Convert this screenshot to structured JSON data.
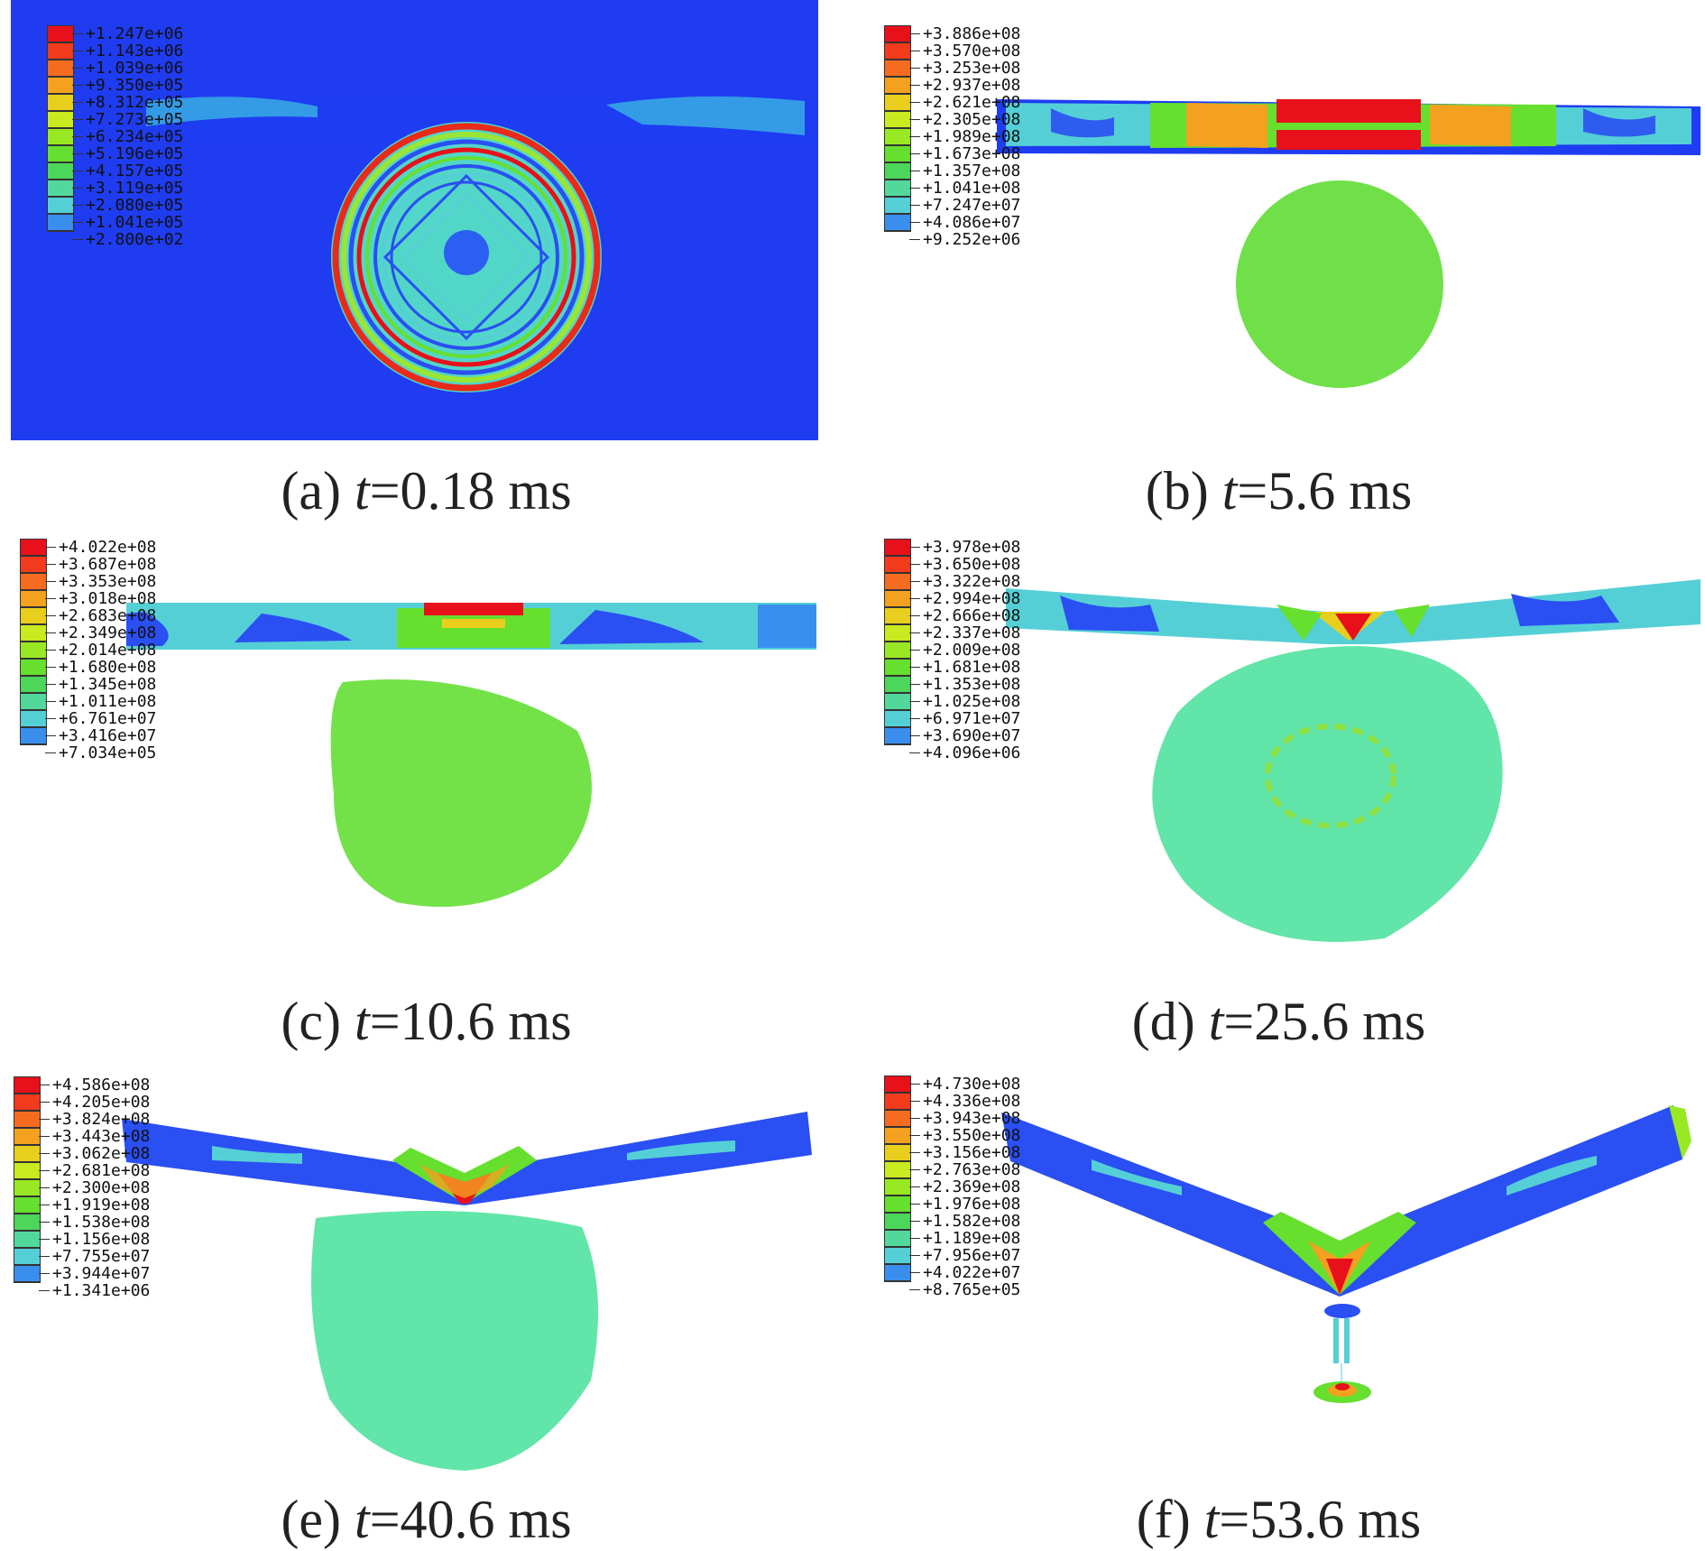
{
  "colormap": [
    "#e8101a",
    "#f23a1c",
    "#f56c20",
    "#f3a11f",
    "#e8cf1e",
    "#c9ea1f",
    "#98e923",
    "#66df2e",
    "#4cd65a",
    "#52d89b",
    "#55cfd6",
    "#3a8fee",
    "#2a4ff2",
    "#1f2ff2"
  ],
  "panels": [
    {
      "id": "a",
      "caption_label": "(a) ",
      "caption_var": "t",
      "caption_value": "=0.18 ms",
      "legend_labels": [
        "+1.247e+06",
        "+1.143e+06",
        "+1.039e+06",
        "+9.350e+05",
        "+8.312e+05",
        "+7.273e+05",
        "+6.234e+05",
        "+5.196e+05",
        "+4.157e+05",
        "+3.119e+05",
        "+2.080e+05",
        "+1.041e+05",
        "+2.800e+02"
      ]
    },
    {
      "id": "b",
      "caption_label": "(b) ",
      "caption_var": "t",
      "caption_value": "=5.6 ms",
      "legend_labels": [
        "+3.886e+08",
        "+3.570e+08",
        "+3.253e+08",
        "+2.937e+08",
        "+2.621e+08",
        "+2.305e+08",
        "+1.989e+08",
        "+1.673e+08",
        "+1.357e+08",
        "+1.041e+08",
        "+7.247e+07",
        "+4.086e+07",
        "+9.252e+06"
      ]
    },
    {
      "id": "c",
      "caption_label": "(c) ",
      "caption_var": "t",
      "caption_value": "=10.6 ms",
      "legend_labels": [
        "+4.022e+08",
        "+3.687e+08",
        "+3.353e+08",
        "+3.018e+08",
        "+2.683e+08",
        "+2.349e+08",
        "+2.014e+08",
        "+1.680e+08",
        "+1.345e+08",
        "+1.011e+08",
        "+6.761e+07",
        "+3.416e+07",
        "+7.034e+05"
      ]
    },
    {
      "id": "d",
      "caption_label": "(d) ",
      "caption_var": "t",
      "caption_value": "=25.6 ms",
      "legend_labels": [
        "+3.978e+08",
        "+3.650e+08",
        "+3.322e+08",
        "+2.994e+08",
        "+2.666e+08",
        "+2.337e+08",
        "+2.009e+08",
        "+1.681e+08",
        "+1.353e+08",
        "+1.025e+08",
        "+6.971e+07",
        "+3.690e+07",
        "+4.096e+06"
      ]
    },
    {
      "id": "e",
      "caption_label": "(e) ",
      "caption_var": "t",
      "caption_value": "=40.6 ms",
      "legend_labels": [
        "+4.586e+08",
        "+4.205e+08",
        "+3.824e+08",
        "+3.443e+08",
        "+3.062e+08",
        "+2.681e+08",
        "+2.300e+08",
        "+1.919e+08",
        "+1.538e+08",
        "+1.156e+08",
        "+7.755e+07",
        "+3.944e+07",
        "+1.341e+06"
      ]
    },
    {
      "id": "f",
      "caption_label": "(f) ",
      "caption_var": "t",
      "caption_value": "=53.6 ms",
      "legend_labels": [
        "+4.730e+08",
        "+4.336e+08",
        "+3.943e+08",
        "+3.550e+08",
        "+3.156e+08",
        "+2.763e+08",
        "+2.369e+08",
        "+1.976e+08",
        "+1.582e+08",
        "+1.189e+08",
        "+7.956e+07",
        "+4.022e+07",
        "+8.765e+05"
      ]
    }
  ]
}
